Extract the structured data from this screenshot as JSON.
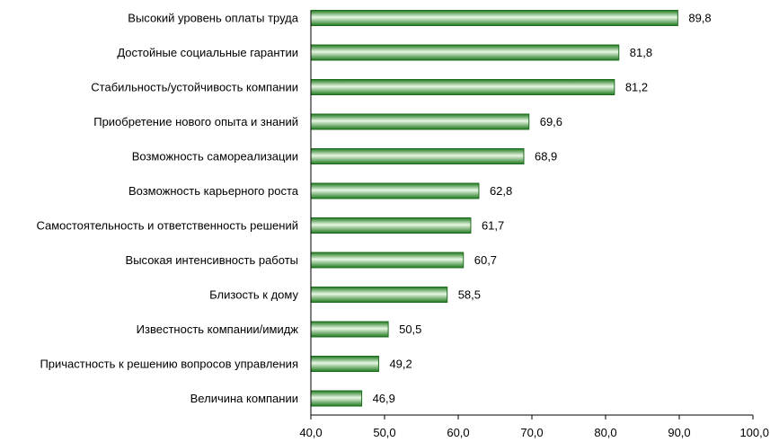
{
  "chart_data": {
    "type": "bar",
    "orientation": "horizontal",
    "title": "",
    "xlabel": "",
    "ylabel": "",
    "categories": [
      "Высокий уровень оплаты труда",
      "Достойные социальные гарантии",
      "Стабильность/устойчивость компании",
      "Приобретение нового опыта и знаний",
      "Возможность самореализации",
      "Возможность карьерного роста",
      "Самостоятельность и ответственность решений",
      "Высокая интенсивность работы",
      "Близость к дому",
      "Известность компании/имидж",
      "Причастность к решению вопросов управления",
      "Величина компании"
    ],
    "values": [
      89.8,
      81.8,
      81.2,
      69.6,
      68.9,
      62.8,
      61.7,
      60.7,
      58.5,
      50.5,
      49.2,
      46.9
    ],
    "value_labels": [
      "89,8",
      "81,8",
      "81,2",
      "69,6",
      "68,9",
      "62,8",
      "61,7",
      "60,7",
      "58,5",
      "50,5",
      "49,2",
      "46,9"
    ],
    "xlim": [
      40,
      100
    ],
    "xticks": [
      40,
      50,
      60,
      70,
      80,
      90,
      100
    ],
    "xtick_labels": [
      "40,0",
      "50,0",
      "60,0",
      "70,0",
      "80,0",
      "90,0",
      "100,0"
    ],
    "grid": false,
    "legend": "none",
    "colors": {
      "bar_dark": "#1f7a1f",
      "bar_light": "#e9f7e4",
      "bar_border": "#1d6b1d",
      "axis": "#000000"
    }
  }
}
